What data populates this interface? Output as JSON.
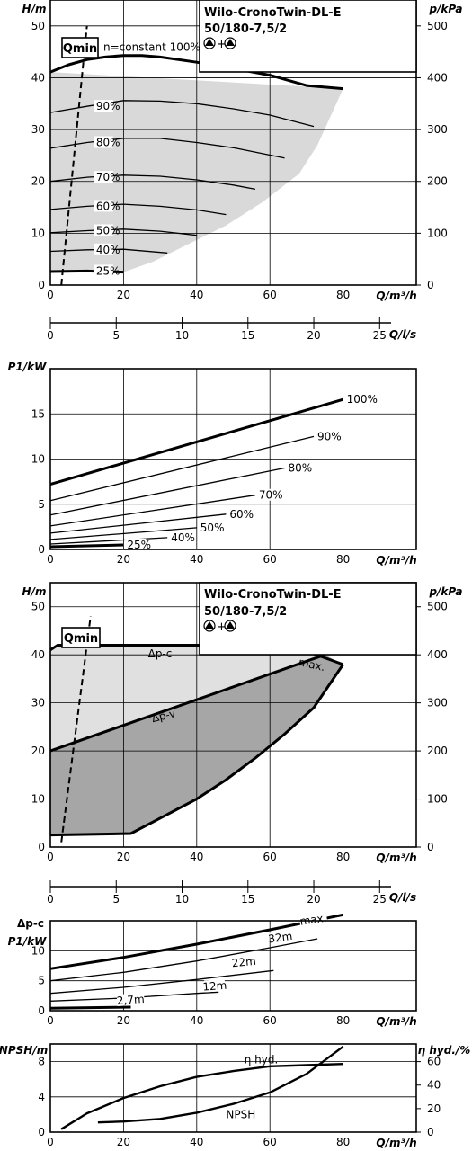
{
  "chart_data": [
    {
      "type": "line",
      "title": "Wilo-CronoTwin-DL-E",
      "subtitle": "50/180-7,5/2",
      "ylabel": "H/m",
      "ylabel_right": "p/kPa",
      "xlabel": "Q/m³/h",
      "xlim": [
        0,
        100
      ],
      "ylim": [
        0,
        55
      ],
      "xticks": [
        0,
        20,
        40,
        60,
        80
      ],
      "yticks": [
        0,
        10,
        20,
        30,
        40,
        50
      ],
      "yticks_right": [
        0,
        100,
        200,
        300,
        400,
        500
      ],
      "qmin_label": "Qmin",
      "series": [
        {
          "name": "n=constant 100%",
          "x": [
            0,
            5,
            10,
            15,
            20,
            25,
            30,
            40,
            50,
            60,
            70,
            80
          ],
          "y": [
            41.1,
            42.5,
            43.5,
            44.0,
            44.3,
            44.3,
            44.0,
            43.0,
            41.8,
            40.5,
            38.5,
            37.9
          ]
        },
        {
          "name": "90%",
          "x": [
            0,
            10,
            20,
            30,
            40,
            50,
            60,
            72
          ],
          "y": [
            33.3,
            34.5,
            35.6,
            35.5,
            35.0,
            34.0,
            32.8,
            30.6
          ]
        },
        {
          "name": "80%",
          "x": [
            0,
            10,
            20,
            30,
            40,
            50,
            64
          ],
          "y": [
            26.4,
            27.5,
            28.3,
            28.3,
            27.5,
            26.5,
            24.5
          ]
        },
        {
          "name": "70%",
          "x": [
            0,
            10,
            20,
            30,
            40,
            50,
            56
          ],
          "y": [
            20.0,
            20.8,
            21.2,
            21.0,
            20.3,
            19.3,
            18.5
          ]
        },
        {
          "name": "60%",
          "x": [
            0,
            10,
            20,
            30,
            40,
            48
          ],
          "y": [
            14.6,
            15.2,
            15.6,
            15.2,
            14.5,
            13.6
          ]
        },
        {
          "name": "50%",
          "x": [
            0,
            10,
            20,
            30,
            40
          ],
          "y": [
            10.1,
            10.5,
            10.8,
            10.4,
            9.6
          ]
        },
        {
          "name": "40%",
          "x": [
            0,
            10,
            20,
            32
          ],
          "y": [
            6.5,
            6.8,
            6.9,
            6.2
          ]
        },
        {
          "name": "25%",
          "x": [
            0,
            10,
            20
          ],
          "y": [
            2.6,
            2.7,
            2.5
          ]
        }
      ],
      "operating_range": {
        "x": [
          0,
          80,
          73,
          68,
          58,
          48,
          38,
          28,
          20,
          0
        ],
        "y": [
          41.1,
          37.9,
          27.0,
          21.5,
          16.0,
          11.5,
          8.0,
          4.5,
          2.5,
          2.6
        ]
      },
      "qmin_line": {
        "x": [
          3,
          10
        ],
        "y": [
          0,
          50
        ]
      },
      "secondary_axis": {
        "label": "Q/l/s",
        "ticks": [
          0,
          5,
          10,
          15,
          20,
          25
        ]
      }
    },
    {
      "type": "line",
      "ylabel": "P1/kW",
      "xlabel": "Q/m³/h",
      "xlim": [
        0,
        100
      ],
      "ylim": [
        0,
        20
      ],
      "xticks": [
        0,
        20,
        40,
        60,
        80
      ],
      "yticks": [
        0,
        5,
        10,
        15
      ],
      "series": [
        {
          "name": "100%",
          "x": [
            0,
            80
          ],
          "y": [
            7.2,
            16.6
          ]
        },
        {
          "name": "90%",
          "x": [
            0,
            72
          ],
          "y": [
            5.4,
            12.5
          ]
        },
        {
          "name": "80%",
          "x": [
            0,
            64
          ],
          "y": [
            3.8,
            9.0
          ]
        },
        {
          "name": "70%",
          "x": [
            0,
            56
          ],
          "y": [
            2.6,
            6.0
          ]
        },
        {
          "name": "60%",
          "x": [
            0,
            48
          ],
          "y": [
            1.8,
            3.9
          ]
        },
        {
          "name": "50%",
          "x": [
            0,
            40
          ],
          "y": [
            1.1,
            2.4
          ]
        },
        {
          "name": "40%",
          "x": [
            0,
            32
          ],
          "y": [
            0.6,
            1.3
          ]
        },
        {
          "name": "25%",
          "x": [
            0,
            20
          ],
          "y": [
            0.3,
            0.5
          ]
        }
      ]
    },
    {
      "type": "area",
      "title": "Wilo-CronoTwin-DL-E",
      "subtitle": "50/180-7,5/2",
      "ylabel": "H/m",
      "ylabel_right": "p/kPa",
      "xlabel": "Q/m³/h",
      "xlim": [
        0,
        100
      ],
      "ylim": [
        0,
        55
      ],
      "xticks": [
        0,
        20,
        40,
        60,
        80
      ],
      "yticks": [
        0,
        10,
        20,
        30,
        40,
        50
      ],
      "yticks_right": [
        0,
        100,
        200,
        300,
        400,
        500
      ],
      "qmin_label": "Qmin",
      "series": [
        {
          "name": "Δp-c",
          "x": [
            0,
            2,
            57,
            72,
            80
          ],
          "y": [
            41,
            42,
            42,
            40.2,
            38
          ]
        },
        {
          "name": "Δp-v",
          "x": [
            0,
            75
          ],
          "y": [
            20,
            40
          ]
        },
        {
          "name": "max.",
          "x": [
            80,
            72,
            64,
            56,
            48,
            40,
            30,
            22,
            0
          ],
          "y": [
            38,
            29,
            23.5,
            18.5,
            14.0,
            10.0,
            6.0,
            2.8,
            2.5
          ]
        }
      ],
      "labels": {
        "dpc": "Δp-c",
        "dpv": "Δp-v",
        "max": "max."
      },
      "qmin_line": {
        "x": [
          3,
          11
        ],
        "y": [
          1,
          48
        ]
      },
      "secondary_axis": {
        "label": "Q/l/s",
        "ticks": [
          0,
          5,
          10,
          15,
          20,
          25
        ]
      }
    },
    {
      "type": "line",
      "ylabel": "Δp-c P1/kW",
      "ylabel_top": "Δp-c",
      "ylabel_bottom": "P1/kW",
      "xlabel": "Q/m³/h",
      "xlim": [
        0,
        100
      ],
      "ylim": [
        0,
        15
      ],
      "xticks": [
        0,
        20,
        40,
        60,
        80
      ],
      "yticks": [
        0,
        5,
        10
      ],
      "series": [
        {
          "name": "max.",
          "x": [
            0,
            20,
            40,
            60,
            80
          ],
          "y": [
            7.0,
            8.9,
            11.1,
            13.5,
            16.0
          ]
        },
        {
          "name": "32m",
          "x": [
            0,
            20,
            40,
            60,
            73
          ],
          "y": [
            5.0,
            6.4,
            8.3,
            10.5,
            12.0
          ]
        },
        {
          "name": "22m",
          "x": [
            0,
            20,
            40,
            61
          ],
          "y": [
            2.9,
            3.9,
            5.2,
            6.7
          ]
        },
        {
          "name": "12m",
          "x": [
            0,
            20,
            40,
            46
          ],
          "y": [
            1.6,
            2.1,
            2.9,
            3.1
          ]
        },
        {
          "name": "2,7m",
          "x": [
            0,
            22
          ],
          "y": [
            0.4,
            0.6
          ]
        }
      ]
    },
    {
      "type": "line",
      "ylabel": "NPSH/m",
      "ylabel_right": "η hyd./%",
      "xlabel": "Q/m³/h",
      "xlim": [
        0,
        100
      ],
      "ylim": [
        0,
        10
      ],
      "xticks": [
        0,
        20,
        40,
        60,
        80
      ],
      "yticks": [
        0,
        4,
        8
      ],
      "yticks_right": [
        0,
        20,
        40,
        60
      ],
      "series": [
        {
          "name": "η hyd.",
          "axis": "right",
          "x": [
            3,
            10,
            20,
            30,
            40,
            50,
            60,
            70,
            80
          ],
          "y": [
            2.5,
            16,
            29,
            39,
            47,
            52,
            56,
            57,
            58
          ]
        },
        {
          "name": "NPSH",
          "axis": "left",
          "x": [
            13,
            20,
            30,
            40,
            50,
            60,
            70,
            80
          ],
          "y": [
            1.1,
            1.2,
            1.5,
            2.2,
            3.2,
            4.5,
            6.6,
            9.7
          ]
        }
      ]
    }
  ]
}
